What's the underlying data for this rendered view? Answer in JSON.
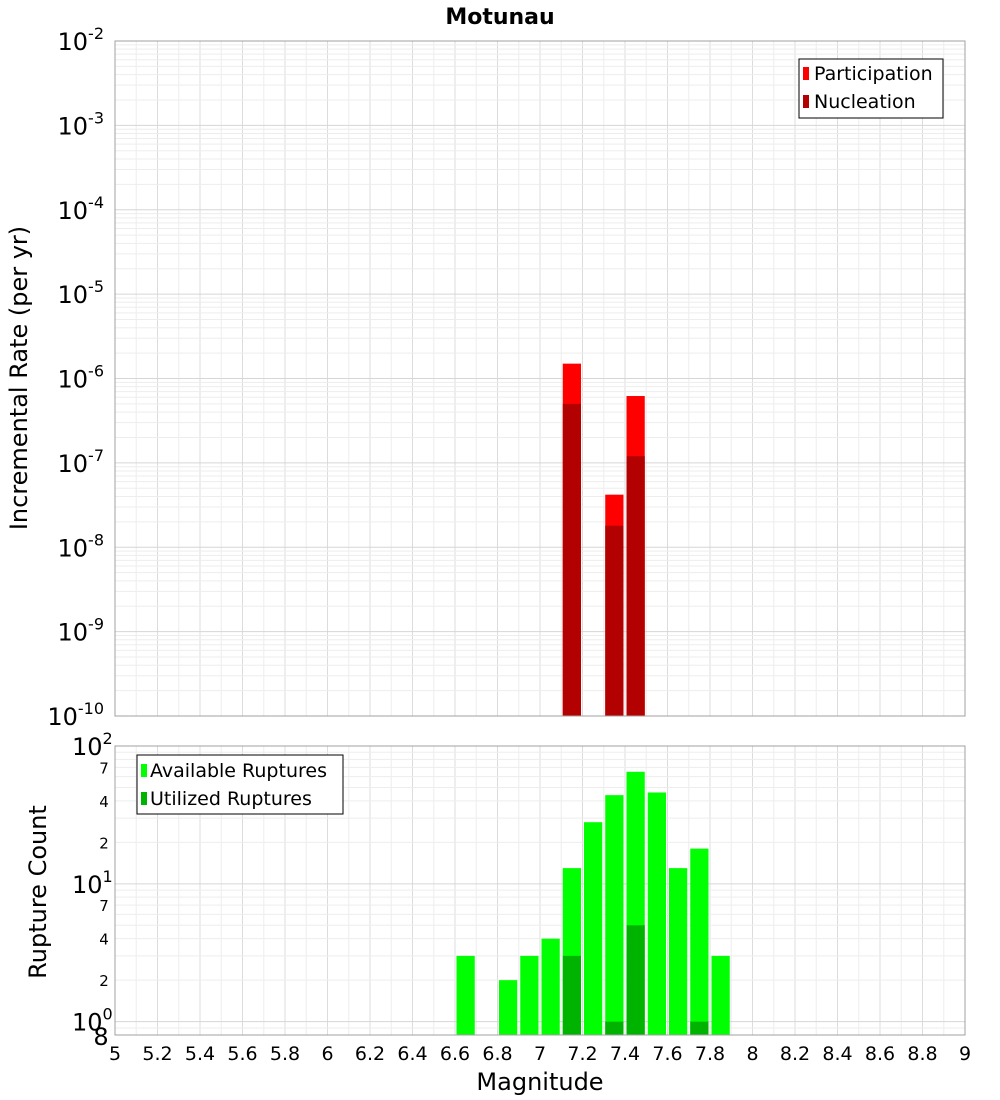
{
  "chart_data": [
    {
      "type": "bar",
      "title": "Motunau",
      "xlabel": "Magnitude",
      "ylabel": "Incremental Rate (per yr)",
      "xlim": [
        5,
        9
      ],
      "ylim": [
        1e-10,
        0.01
      ],
      "y_scale": "log",
      "y_tick_labels": [
        "10^-10",
        "10^-9",
        "10^-8",
        "10^-7",
        "10^-6",
        "10^-5",
        "10^-4",
        "10^-3",
        "10^-2"
      ],
      "legend_position": "top-right",
      "grid": true,
      "bar_width": 0.1,
      "series": [
        {
          "name": "Participation",
          "color": "#ff0000",
          "points": [
            {
              "x": 7.15,
              "y": 1.5e-06
            },
            {
              "x": 7.35,
              "y": 4.2e-08
            },
            {
              "x": 7.45,
              "y": 6.2e-07
            }
          ]
        },
        {
          "name": "Nucleation",
          "color": "#b30000",
          "points": [
            {
              "x": 7.15,
              "y": 5e-07
            },
            {
              "x": 7.35,
              "y": 1.8e-08
            },
            {
              "x": 7.45,
              "y": 1.2e-07
            }
          ]
        }
      ]
    },
    {
      "type": "bar",
      "xlabel": "Magnitude",
      "ylabel": "Rupture Count",
      "xlim": [
        5,
        9
      ],
      "ylim": [
        0.8,
        100
      ],
      "y_scale": "log",
      "x_ticks": [
        "5",
        "5.2",
        "5.4",
        "5.6",
        "5.8",
        "6",
        "6.2",
        "6.4",
        "6.6",
        "6.8",
        "7",
        "7.2",
        "7.4",
        "7.6",
        "7.8",
        "8",
        "8.2",
        "8.4",
        "8.6",
        "8.8",
        "9"
      ],
      "legend_position": "top-left",
      "grid": true,
      "bar_width": 0.1,
      "series": [
        {
          "name": "Available Ruptures",
          "color": "#00ff00",
          "points": [
            {
              "x": 6.65,
              "y": 3
            },
            {
              "x": 6.85,
              "y": 2
            },
            {
              "x": 6.95,
              "y": 3
            },
            {
              "x": 7.05,
              "y": 4
            },
            {
              "x": 7.15,
              "y": 13
            },
            {
              "x": 7.25,
              "y": 28
            },
            {
              "x": 7.35,
              "y": 44
            },
            {
              "x": 7.45,
              "y": 65
            },
            {
              "x": 7.55,
              "y": 46
            },
            {
              "x": 7.65,
              "y": 13
            },
            {
              "x": 7.75,
              "y": 18
            },
            {
              "x": 7.85,
              "y": 3
            }
          ]
        },
        {
          "name": "Utilized Ruptures",
          "color": "#00b300",
          "points": [
            {
              "x": 7.15,
              "y": 3
            },
            {
              "x": 7.35,
              "y": 1
            },
            {
              "x": 7.45,
              "y": 5
            },
            {
              "x": 7.75,
              "y": 1
            }
          ]
        }
      ]
    }
  ]
}
